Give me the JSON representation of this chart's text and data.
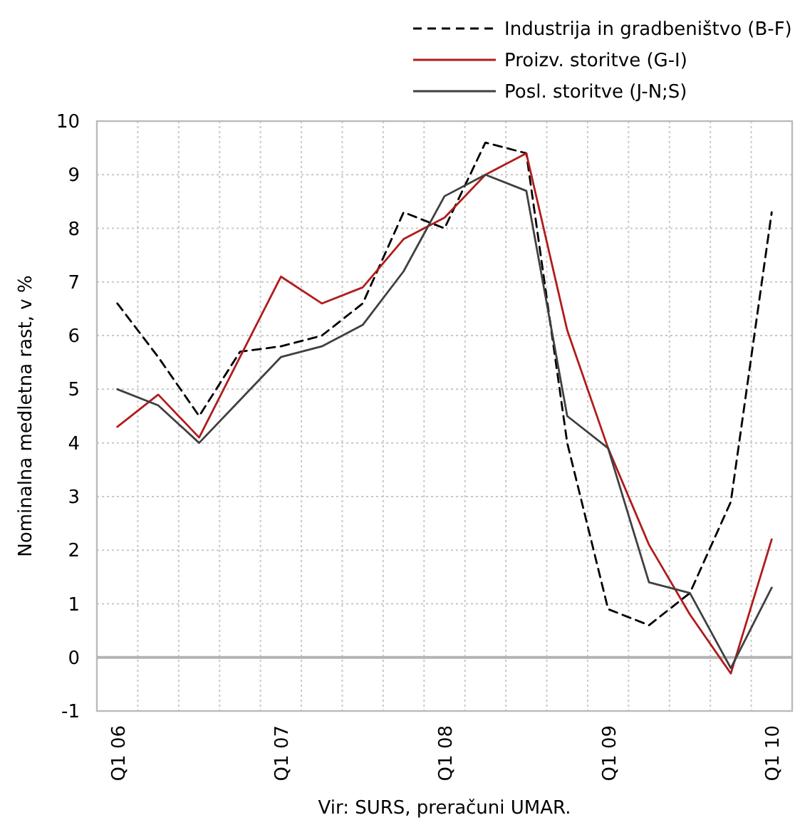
{
  "chart_data": {
    "type": "line",
    "ylabel": "Nominalna medletna rast, v %",
    "annotations": [
      "Vir: SURS, preračuni UMAR."
    ],
    "categories": [
      "Q1 06",
      null,
      null,
      null,
      "Q1 07",
      null,
      null,
      null,
      "Q1 08",
      null,
      null,
      null,
      "Q1 09",
      null,
      null,
      null,
      "Q1 10"
    ],
    "series": [
      {
        "name": "Industrija in gradbeništvo (B-F)",
        "color": "#000000",
        "line_style": "dashed",
        "values": [
          6.6,
          5.6,
          4.5,
          5.7,
          5.8,
          6.0,
          6.6,
          8.3,
          8.0,
          9.6,
          9.4,
          4.0,
          0.9,
          0.6,
          1.2,
          2.9,
          8.3
        ]
      },
      {
        "name": "Proizv. storitve (G-I)",
        "color": "#b01c1c",
        "line_style": "solid",
        "values": [
          4.3,
          4.9,
          4.1,
          5.6,
          7.1,
          6.6,
          6.9,
          7.8,
          8.2,
          9.0,
          9.4,
          6.1,
          3.9,
          2.1,
          0.8,
          -0.3,
          2.2
        ]
      },
      {
        "name": "Posl. storitve (J-N;S)",
        "color": "#404040",
        "line_style": "solid",
        "values": [
          5.0,
          4.7,
          4.0,
          4.8,
          5.6,
          5.8,
          6.2,
          7.2,
          8.6,
          9.0,
          8.7,
          4.5,
          3.9,
          1.4,
          1.2,
          -0.2,
          1.3
        ]
      }
    ],
    "ylim": [
      -1,
      10
    ],
    "yticks": [
      -1,
      0,
      1,
      2,
      3,
      4,
      5,
      6,
      7,
      8,
      9,
      10
    ],
    "grid": true,
    "legend": "top",
    "marker": "none",
    "ref_lines": [
      {
        "axis": "y",
        "value": 0,
        "color": "#b3b3b3"
      }
    ]
  }
}
